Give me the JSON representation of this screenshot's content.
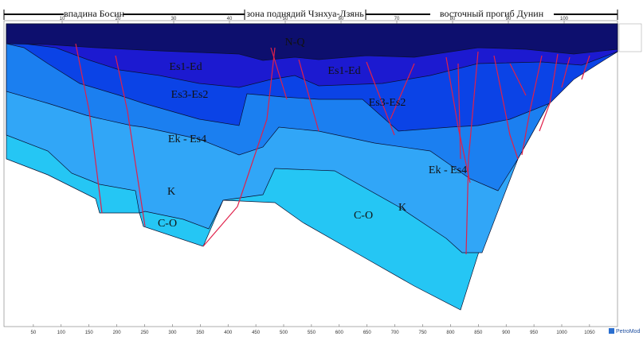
{
  "zones": [
    "впадина Босин",
    "зона поднядий Чзнхуа-Лзянь",
    "восточный прогиб Дунин"
  ],
  "layers": [
    "N-Q",
    "Es1-Ed",
    "Es1-Ed",
    "Es3-Es2",
    "Es3-Es2",
    "Ek - Es4",
    "Ek - Es4",
    "K",
    "K",
    "C-O",
    "C-O"
  ],
  "top_ticks": [
    10,
    20,
    30,
    40,
    50,
    60,
    70,
    80,
    90,
    100
  ],
  "bottom_ticks": [
    50,
    100,
    150,
    200,
    250,
    300,
    350,
    400,
    450,
    500,
    550,
    600,
    650,
    700,
    750,
    800,
    850,
    900,
    950,
    1000,
    1050
  ],
  "logo": "PetroMod"
}
